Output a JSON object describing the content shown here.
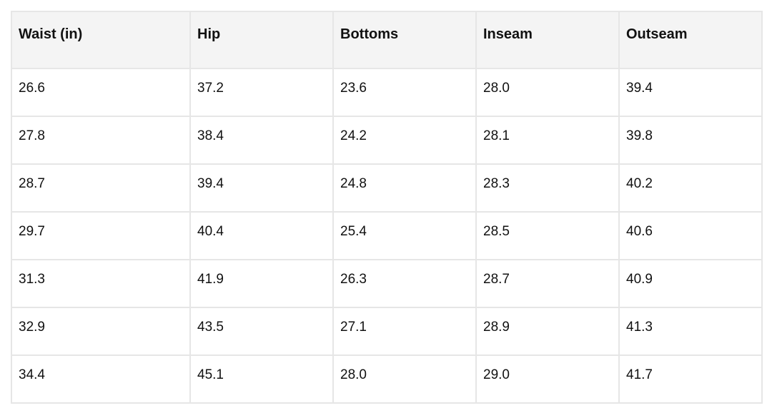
{
  "table": {
    "headers": [
      "Waist (in)",
      "Hip",
      "Bottoms",
      "Inseam",
      "Outseam"
    ],
    "rows": [
      [
        "26.6",
        "37.2",
        "23.6",
        "28.0",
        "39.4"
      ],
      [
        "27.8",
        "38.4",
        "24.2",
        "28.1",
        "39.8"
      ],
      [
        "28.7",
        "39.4",
        "24.8",
        "28.3",
        "40.2"
      ],
      [
        "29.7",
        "40.4",
        "25.4",
        "28.5",
        "40.6"
      ],
      [
        "31.3",
        "41.9",
        "26.3",
        "28.7",
        "40.9"
      ],
      [
        "32.9",
        "43.5",
        "27.1",
        "28.9",
        "41.3"
      ],
      [
        "34.4",
        "45.1",
        "28.0",
        "29.0",
        "41.7"
      ]
    ]
  },
  "colors": {
    "header_background": "#f4f4f4",
    "border": "#e6e6e6",
    "text": "#111111"
  }
}
